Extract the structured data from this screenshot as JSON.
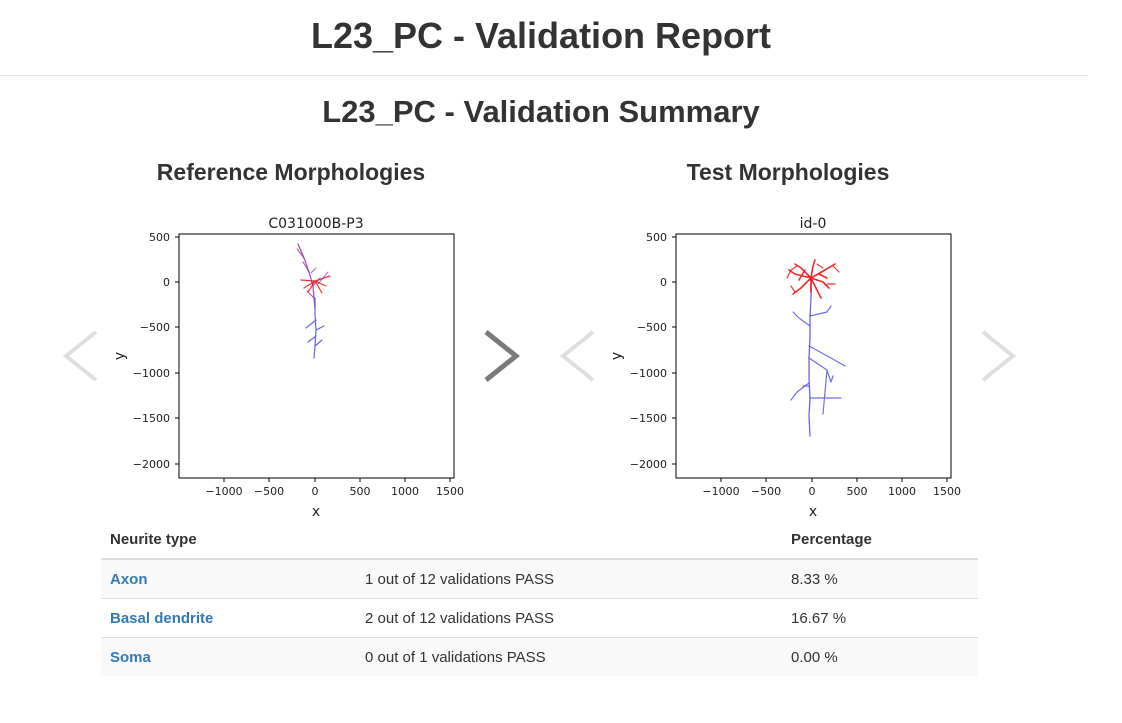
{
  "header": {
    "title": "L23_PC - Validation Report"
  },
  "summary": {
    "title": "L23_PC - Validation Summary"
  },
  "reference": {
    "heading": "Reference Morphologies",
    "plot_title": "C031000B-P3",
    "xlabel": "x",
    "ylabel": "y",
    "x_ticks": [
      "−1000",
      "−500",
      "0",
      "500",
      "1000",
      "1500"
    ],
    "y_ticks": [
      "500",
      "0",
      "−500",
      "−1000",
      "−1500",
      "−2000"
    ]
  },
  "test": {
    "heading": "Test Morphologies",
    "plot_title": "id-0",
    "xlabel": "x",
    "ylabel": "y",
    "x_ticks": [
      "−1000",
      "−500",
      "0",
      "500",
      "1000",
      "1500"
    ],
    "y_ticks": [
      "500",
      "0",
      "−500",
      "−1000",
      "−1500",
      "−2000"
    ]
  },
  "colors": {
    "axon": "#4a4ae6",
    "basal_dendrite": "#ee1111",
    "apical": "#9933aa",
    "link": "#337ab7",
    "arrow_active": "#7a7a7a",
    "arrow_inactive": "#dedede"
  },
  "table": {
    "headers": [
      "Neurite type",
      "",
      "Percentage"
    ],
    "rows": [
      {
        "type": "Axon",
        "result": "1 out of 12 validations PASS",
        "percentage": "8.33 %"
      },
      {
        "type": "Basal dendrite",
        "result": "2 out of 12 validations PASS",
        "percentage": "16.67 %"
      },
      {
        "type": "Soma",
        "result": "0 out of 1 validations PASS",
        "percentage": "0.00 %"
      }
    ]
  }
}
